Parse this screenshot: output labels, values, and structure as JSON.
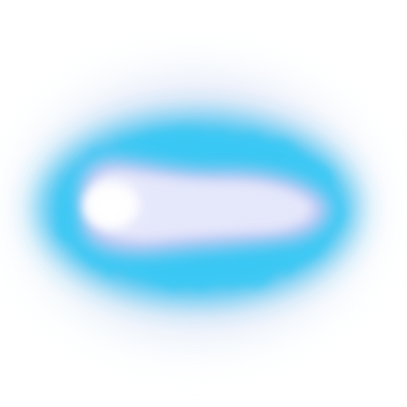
{
  "colors": {
    "background": "#ffffff",
    "outer_haze": "#e3f3fb",
    "violet_haze": "#d7c8ee",
    "cyan_ring": "#2ec0f0",
    "lavender_core": "#c9cbf4",
    "pale_core": "#e9ebfc",
    "hotspot": "#ffffff"
  },
  "icons": {
    "glow": "blue-energy-glow-icon"
  }
}
